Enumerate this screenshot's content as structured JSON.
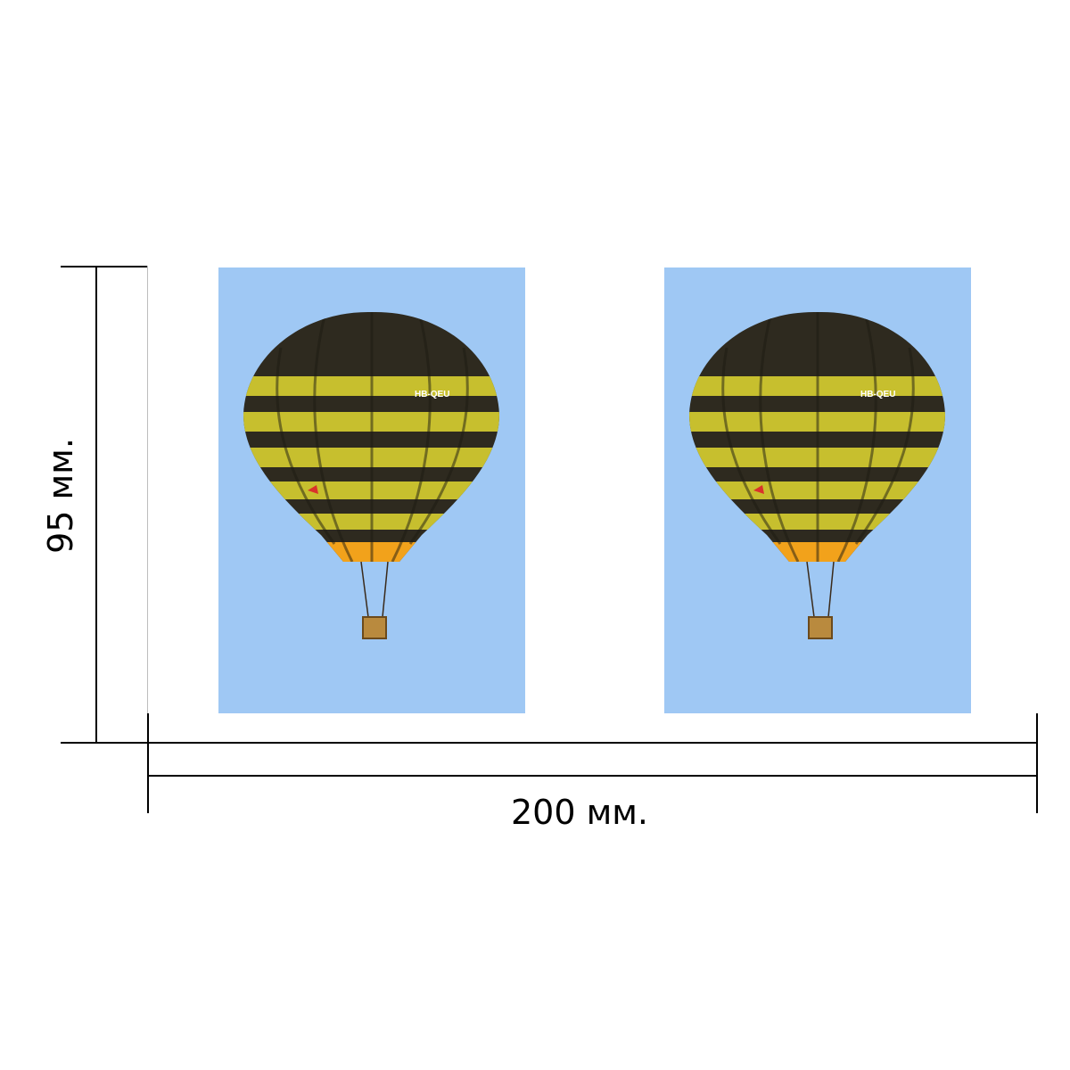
{
  "dimensions": {
    "width_label": "200 мм.",
    "height_label": "95 мм."
  },
  "photos": [
    {
      "subject": "hot-air-balloon",
      "registration": "HB-QEU"
    },
    {
      "subject": "hot-air-balloon",
      "registration": "HB-QEU"
    }
  ],
  "colors": {
    "sky": "#9fc8f4",
    "stripe_dark": "#2e2a1f",
    "stripe_yellow": "#c7bf2e",
    "skirt": "#f2a21b",
    "basket": "#b98a3e"
  }
}
